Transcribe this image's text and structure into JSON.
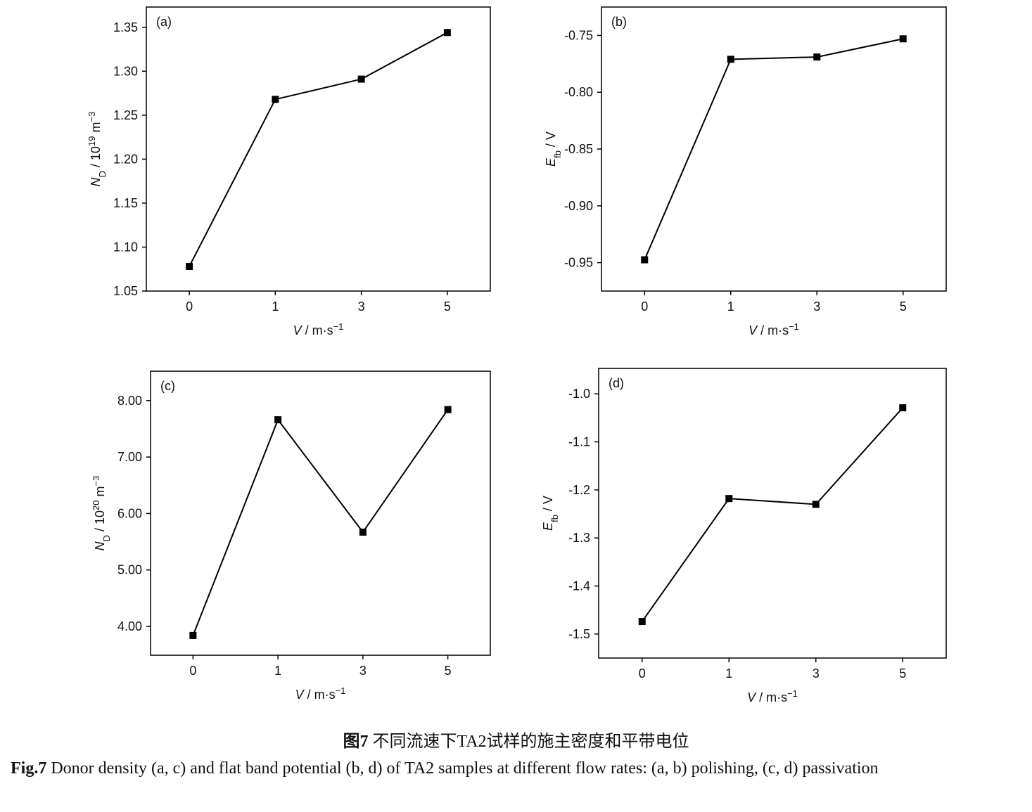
{
  "chart_data": [
    {
      "type": "line",
      "panel_label": "(a)",
      "ylabel": [
        {
          "t": "N",
          "s": "i"
        },
        {
          "t": "D",
          "s": "sub"
        },
        {
          "t": " / 10",
          "s": "n"
        },
        {
          "t": "19",
          "s": "sup"
        },
        {
          "t": " m",
          "s": "n"
        },
        {
          "t": "−3",
          "s": "sup"
        }
      ],
      "xlabel": [
        {
          "t": "V",
          "s": "i"
        },
        {
          "t": " / m·s",
          "s": "n"
        },
        {
          "t": "−1",
          "s": "sup"
        }
      ],
      "categories": [
        "0",
        "1",
        "3",
        "5"
      ],
      "values": [
        1.078,
        1.268,
        1.291,
        1.344
      ],
      "color": "#000000",
      "ylim": [
        1.05,
        1.373
      ],
      "yticks": [
        1.05,
        {
          "value": 1.1,
          "label": "1.10"
        },
        1.15,
        {
          "value": 1.2,
          "label": "1.20"
        },
        1.25,
        {
          "value": 1.3,
          "label": "1.30"
        },
        1.35
      ]
    },
    {
      "type": "line",
      "panel_label": "(b)",
      "ylabel": [
        {
          "t": "E",
          "s": "i"
        },
        {
          "t": "fb",
          "s": "sub"
        },
        {
          "t": " / V",
          "s": "n"
        }
      ],
      "xlabel": [
        {
          "t": "V",
          "s": "i"
        },
        {
          "t": " / m·s",
          "s": "n"
        },
        {
          "t": "−1",
          "s": "sup"
        }
      ],
      "categories": [
        "0",
        "1",
        "3",
        "5"
      ],
      "values": [
        -0.9475,
        -0.771,
        -0.769,
        -0.753
      ],
      "color": "#000000",
      "ylim": [
        -0.975,
        -0.725
      ],
      "yticks": [
        -0.95,
        {
          "value": -0.9,
          "label": "-0.90"
        },
        -0.85,
        {
          "value": -0.8,
          "label": "-0.80"
        },
        -0.75
      ]
    },
    {
      "type": "line",
      "panel_label": "(c)",
      "ylabel": [
        {
          "t": "N",
          "s": "i"
        },
        {
          "t": "D",
          "s": "sub"
        },
        {
          "t": " / 10",
          "s": "n"
        },
        {
          "t": "20",
          "s": "sup"
        },
        {
          "t": " m",
          "s": "n"
        },
        {
          "t": "−3",
          "s": "sup"
        }
      ],
      "xlabel": [
        {
          "t": "V",
          "s": "i"
        },
        {
          "t": " / m·s",
          "s": "n"
        },
        {
          "t": "−1",
          "s": "sup"
        }
      ],
      "categories": [
        "0",
        "1",
        "3",
        "5"
      ],
      "values": [
        3.84,
        7.66,
        5.67,
        7.84
      ],
      "color": "#000000",
      "ylim": [
        3.49,
        8.52
      ],
      "yticks": [
        {
          "value": 4,
          "label": "4.00"
        },
        {
          "value": 5,
          "label": "5.00"
        },
        {
          "value": 6,
          "label": "6.00"
        },
        {
          "value": 7,
          "label": "7.00"
        },
        {
          "value": 8,
          "label": "8.00"
        }
      ]
    },
    {
      "type": "line",
      "panel_label": "(d)",
      "ylabel": [
        {
          "t": "E",
          "s": "i"
        },
        {
          "t": "fb",
          "s": "sub"
        },
        {
          "t": " / V",
          "s": "n"
        }
      ],
      "xlabel": [
        {
          "t": "V",
          "s": "i"
        },
        {
          "t": " / m·s",
          "s": "n"
        },
        {
          "t": "−1",
          "s": "sup"
        }
      ],
      "categories": [
        "0",
        "1",
        "3",
        "5"
      ],
      "values": [
        -1.474,
        -1.218,
        -1.23,
        -1.029
      ],
      "color": "#000000",
      "ylim": [
        -1.55,
        -0.947
      ],
      "yticks": [
        -1.5,
        -1.4,
        -1.3,
        -1.2,
        -1.1,
        {
          "value": -1.0,
          "label": "-1.0"
        }
      ]
    }
  ],
  "caption": {
    "zh_label": "图7",
    "zh_text": " 不同流速下TA2试样的施主密度和平带电位",
    "en_label": "Fig.7",
    "en_text": " Donor density (a, c) and flat band potential (b, d) of TA2 samples at different flow rates: (a, b) polishing, (c, d) passivation"
  }
}
